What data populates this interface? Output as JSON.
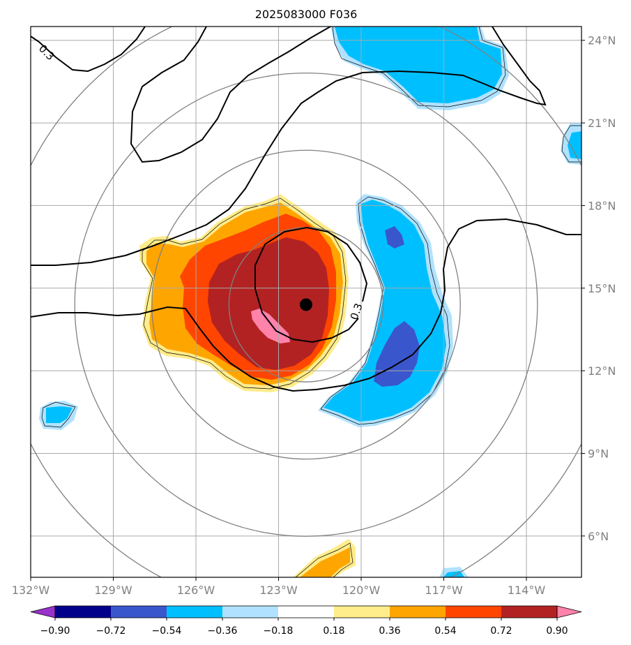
{
  "chart_data": {
    "type": "map-contour",
    "title": "2025083000 F036",
    "x_ticks": [
      {
        "value": -132,
        "label": "132°W"
      },
      {
        "value": -129,
        "label": "129°W"
      },
      {
        "value": -126,
        "label": "126°W"
      },
      {
        "value": -123,
        "label": "123°W"
      },
      {
        "value": -120,
        "label": "120°W"
      },
      {
        "value": -117,
        "label": "117°W"
      },
      {
        "value": -114,
        "label": "114°W"
      }
    ],
    "y_ticks": [
      {
        "value": 24,
        "label": "24°N"
      },
      {
        "value": 21,
        "label": "21°N"
      },
      {
        "value": 18,
        "label": "18°N"
      },
      {
        "value": 15,
        "label": "15°N"
      },
      {
        "value": 12,
        "label": "12°N"
      },
      {
        "value": 9,
        "label": "9°N"
      },
      {
        "value": 6,
        "label": "6°N"
      }
    ],
    "lon_range": [
      -132,
      -112
    ],
    "lat_range": [
      4.5,
      24.5
    ],
    "center": {
      "lon": -122.0,
      "lat": 14.4
    },
    "range_rings_deg": [
      2.8,
      5.6,
      8.4,
      11.2
    ],
    "contour_label": "0.3",
    "colorbar": {
      "levels": [
        "−0.90",
        "−0.72",
        "−0.54",
        "−0.36",
        "−0.18",
        "0.18",
        "0.36",
        "0.54",
        "0.72",
        "0.90"
      ],
      "colors": [
        "#9932cc",
        "#00008b",
        "#3a56cc",
        "#00bfff",
        "#b0e2ff",
        "#ffffff",
        "#ffec8b",
        "#ffa500",
        "#ff4500",
        "#b22222",
        "#ff82ab"
      ]
    },
    "fill_colors": {
      "light_yellow": "#ffec8b",
      "orange": "#ffa500",
      "red_orange": "#ff4500",
      "dark_red": "#b22222",
      "pink": "#ff82ab",
      "light_blue": "#b0e2ff",
      "blue": "#00bfff",
      "royal_blue": "#3a56cc"
    },
    "grid_color": "#a9a9a9",
    "ring_color": "#808080"
  }
}
